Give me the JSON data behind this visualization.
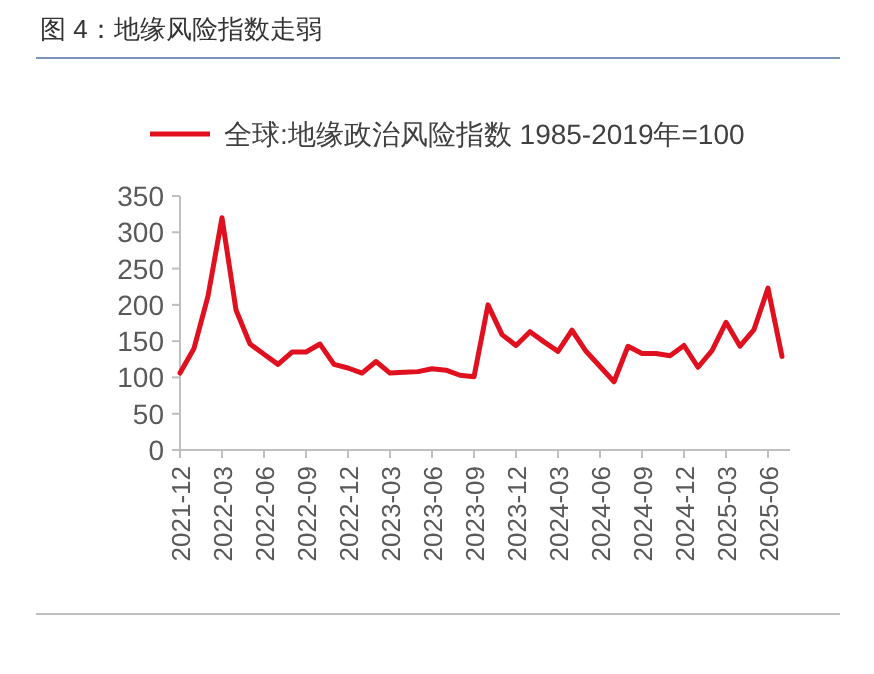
{
  "chart_data": {
    "type": "line",
    "title": "图 4：地缘风险指数走弱",
    "categories": [
      "2021-12",
      null,
      null,
      "2022-03",
      null,
      null,
      "2022-06",
      null,
      null,
      "2022-09",
      null,
      null,
      "2022-12",
      null,
      null,
      "2023-03",
      null,
      null,
      "2023-06",
      null,
      null,
      "2023-09",
      null,
      null,
      "2023-12",
      null,
      null,
      "2024-03",
      null,
      null,
      "2024-06",
      null,
      null,
      "2024-09",
      null,
      null,
      "2024-12",
      null,
      null,
      "2025-03",
      null,
      null,
      "2025-06",
      null
    ],
    "series": [
      {
        "name": "全球:地缘政治风险指数 1985-2019年=100",
        "color": "#e0101e",
        "values": [
          106,
          140,
          212,
          320,
          193,
          146,
          132,
          118,
          135,
          135,
          146,
          118,
          113,
          106,
          122,
          106,
          107,
          108,
          112,
          110,
          103,
          101,
          200,
          159,
          144,
          163,
          149,
          136,
          165,
          136,
          115,
          94,
          143,
          133,
          133,
          130,
          144,
          114,
          137,
          176,
          143,
          166,
          223,
          129
        ]
      }
    ],
    "ylim": [
      0,
      350
    ],
    "yticks": [
      0,
      50,
      100,
      150,
      200,
      250,
      300,
      350
    ],
    "grid": false,
    "legend": "top",
    "marker": "none",
    "line_style": "solid"
  }
}
